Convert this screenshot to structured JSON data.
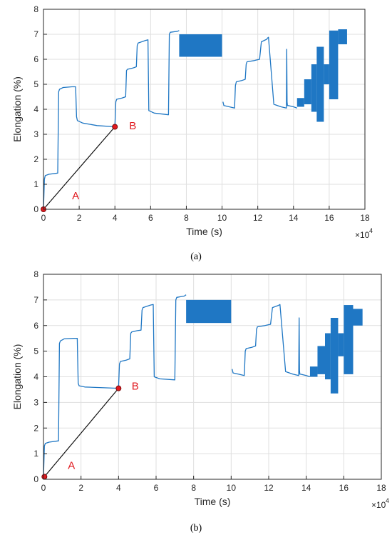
{
  "captions": [
    "(a)",
    "(b)"
  ],
  "chart_data": [
    {
      "type": "line",
      "caption": "(a)",
      "xlabel": "Time (s)",
      "ylabel": "Elongation (%)",
      "x_multiplier_label": "×10",
      "x_multiplier_exponent": "4",
      "xlim": [
        0,
        18
      ],
      "ylim": [
        0,
        8
      ],
      "xticks": [
        0,
        2,
        4,
        6,
        8,
        10,
        12,
        14,
        16,
        18
      ],
      "yticks": [
        0,
        1,
        2,
        3,
        4,
        5,
        6,
        7,
        8
      ],
      "grid": true,
      "line_color": "#1f77c4",
      "series": [
        {
          "x": [
            0,
            0.05,
            0.1,
            0.3,
            0.8,
            0.85,
            0.9,
            1.1,
            1.6,
            1.8,
            1.85,
            1.9,
            2.2,
            3.0,
            4.0,
            4.05,
            4.1,
            4.4,
            4.6,
            4.65,
            4.7,
            5.0,
            5.2,
            5.25,
            5.3,
            5.7,
            5.85,
            5.9,
            6.2,
            7.0,
            7.05,
            7.1,
            7.5,
            7.6
          ],
          "y": [
            0,
            1.2,
            1.35,
            1.4,
            1.45,
            4.7,
            4.8,
            4.87,
            4.9,
            4.9,
            3.7,
            3.55,
            3.45,
            3.35,
            3.3,
            4.3,
            4.4,
            4.45,
            4.5,
            5.55,
            5.6,
            5.65,
            5.7,
            6.55,
            6.65,
            6.75,
            6.78,
            3.95,
            3.85,
            3.78,
            7.0,
            7.08,
            7.12,
            7.15
          ]
        },
        {
          "x": [
            10.05,
            10.1,
            10.4,
            10.7,
            10.75,
            10.8,
            11.1,
            11.3,
            11.35,
            11.4,
            11.8,
            12.1,
            12.2,
            12.5,
            12.55,
            12.6,
            12.9,
            13.3,
            13.6,
            13.62,
            13.64,
            13.66,
            13.7,
            14.0,
            14.2
          ],
          "y": [
            4.3,
            4.15,
            4.1,
            4.05,
            4.95,
            5.1,
            5.15,
            5.2,
            5.8,
            5.9,
            5.95,
            6.0,
            6.7,
            6.8,
            6.85,
            6.88,
            4.2,
            4.1,
            4.05,
            6.4,
            4.3,
            4.15,
            4.15,
            4.1,
            4.05
          ]
        }
      ],
      "oscillation_bands": [
        {
          "x_start": 7.6,
          "x_end": 10.0,
          "y_low": 6.1,
          "y_high": 7.0
        }
      ],
      "oscillation_bars": [
        {
          "x_start": 14.2,
          "x_end": 14.6,
          "y_low": 4.1,
          "y_high": 4.45
        },
        {
          "x_start": 14.6,
          "x_end": 15.0,
          "y_low": 4.2,
          "y_high": 5.2
        },
        {
          "x_start": 15.0,
          "x_end": 15.3,
          "y_low": 3.9,
          "y_high": 5.8
        },
        {
          "x_start": 15.3,
          "x_end": 15.7,
          "y_low": 3.5,
          "y_high": 6.5
        },
        {
          "x_start": 15.7,
          "x_end": 16.0,
          "y_low": 5.0,
          "y_high": 5.8
        },
        {
          "x_start": 16.0,
          "x_end": 16.5,
          "y_low": 4.4,
          "y_high": 7.15
        },
        {
          "x_start": 16.5,
          "x_end": 17.0,
          "y_low": 6.6,
          "y_high": 7.2
        }
      ],
      "annotations": [
        {
          "label": "A",
          "x": 1.6,
          "y": 0.4
        },
        {
          "label": "B",
          "x": 4.8,
          "y": 3.2
        }
      ],
      "segment_AB": {
        "from": [
          0,
          0
        ],
        "to": [
          4.0,
          3.3
        ],
        "color": "#111111"
      },
      "points": [
        {
          "x": 0,
          "y": 0
        },
        {
          "x": 4.0,
          "y": 3.3
        }
      ],
      "point_color": "#e0191f"
    },
    {
      "type": "line",
      "caption": "(b)",
      "xlabel": "Time (s)",
      "ylabel": "Elongation (%)",
      "x_multiplier_label": "×10",
      "x_multiplier_exponent": "4",
      "xlim": [
        0,
        18
      ],
      "ylim": [
        0,
        8
      ],
      "xticks": [
        0,
        2,
        4,
        6,
        8,
        10,
        12,
        14,
        16,
        18
      ],
      "yticks": [
        0,
        1,
        2,
        3,
        4,
        5,
        6,
        7,
        8
      ],
      "grid": true,
      "line_color": "#1f77c4",
      "series": [
        {
          "x": [
            0,
            0.05,
            0.1,
            0.3,
            0.8,
            0.85,
            0.9,
            1.1,
            1.6,
            1.8,
            1.85,
            1.9,
            2.2,
            3.0,
            4.0,
            4.05,
            4.1,
            4.4,
            4.6,
            4.65,
            4.7,
            5.0,
            5.2,
            5.25,
            5.3,
            5.7,
            5.85,
            5.9,
            6.2,
            7.0,
            7.05,
            7.1,
            7.5,
            7.6
          ],
          "y": [
            0.1,
            1.3,
            1.4,
            1.45,
            1.5,
            5.3,
            5.4,
            5.48,
            5.5,
            5.5,
            3.75,
            3.65,
            3.6,
            3.58,
            3.55,
            4.5,
            4.6,
            4.65,
            4.7,
            5.7,
            5.75,
            5.8,
            5.82,
            6.6,
            6.7,
            6.8,
            6.82,
            4.0,
            3.92,
            3.88,
            7.0,
            7.1,
            7.15,
            7.2
          ]
        },
        {
          "x": [
            10.05,
            10.1,
            10.4,
            10.7,
            10.75,
            10.8,
            11.1,
            11.3,
            11.35,
            11.4,
            11.8,
            12.1,
            12.2,
            12.5,
            12.55,
            12.6,
            12.9,
            13.3,
            13.6,
            13.62,
            13.64,
            13.66,
            13.7,
            14.0,
            14.2
          ],
          "y": [
            4.3,
            4.15,
            4.1,
            4.05,
            5.0,
            5.1,
            5.15,
            5.2,
            5.85,
            5.95,
            6.0,
            6.05,
            6.7,
            6.78,
            6.8,
            6.82,
            4.2,
            4.1,
            4.05,
            6.3,
            4.25,
            4.1,
            4.1,
            4.05,
            4.0
          ]
        }
      ],
      "oscillation_bands": [
        {
          "x_start": 7.6,
          "x_end": 10.0,
          "y_low": 6.1,
          "y_high": 7.0
        }
      ],
      "oscillation_bars": [
        {
          "x_start": 14.2,
          "x_end": 14.6,
          "y_low": 4.0,
          "y_high": 4.4
        },
        {
          "x_start": 14.6,
          "x_end": 15.0,
          "y_low": 4.1,
          "y_high": 5.2
        },
        {
          "x_start": 15.0,
          "x_end": 15.3,
          "y_low": 3.9,
          "y_high": 5.7
        },
        {
          "x_start": 15.3,
          "x_end": 15.7,
          "y_low": 3.35,
          "y_high": 6.3
        },
        {
          "x_start": 15.7,
          "x_end": 16.0,
          "y_low": 4.8,
          "y_high": 5.7
        },
        {
          "x_start": 16.0,
          "x_end": 16.5,
          "y_low": 4.1,
          "y_high": 6.8
        },
        {
          "x_start": 16.5,
          "x_end": 17.0,
          "y_low": 6.0,
          "y_high": 6.65
        }
      ],
      "annotations": [
        {
          "label": "A",
          "x": 1.3,
          "y": 0.4
        },
        {
          "label": "B",
          "x": 4.7,
          "y": 3.5
        }
      ],
      "segment_AB": {
        "from": [
          0.05,
          0.1
        ],
        "to": [
          4.0,
          3.55
        ],
        "color": "#111111"
      },
      "points": [
        {
          "x": 0.05,
          "y": 0.1
        },
        {
          "x": 4.0,
          "y": 3.55
        }
      ],
      "point_color": "#e0191f"
    }
  ]
}
